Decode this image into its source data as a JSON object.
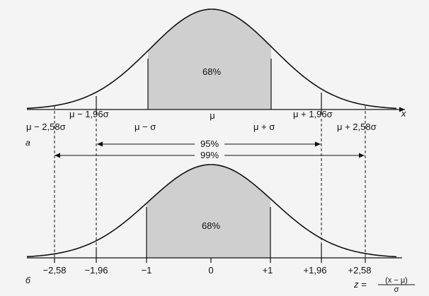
{
  "colors": {
    "background": "#f4f4f4",
    "shade": "#cfcfcf",
    "ink": "#111111"
  },
  "top_panel": {
    "panel_label": "а",
    "axis_variable": "x",
    "center_percent": "68%",
    "labels": {
      "mu": "μ",
      "minus_196": "μ − 1,96σ",
      "minus_258": "μ − 2,58σ",
      "minus_1": "μ − σ",
      "plus_1": "μ + σ",
      "plus_196": "μ + 1,96σ",
      "plus_258": "μ + 2,58σ"
    }
  },
  "intervals": {
    "p95": "95%",
    "p99": "99%"
  },
  "bottom_panel": {
    "panel_label": "б",
    "center_percent": "68%",
    "ticks": [
      "−2,58",
      "−1,96",
      "−1",
      "0",
      "+1",
      "+1,96",
      "+2,58"
    ],
    "z_prefix": "z =",
    "z_numerator": "(x − μ)",
    "z_denominator": "σ"
  }
}
